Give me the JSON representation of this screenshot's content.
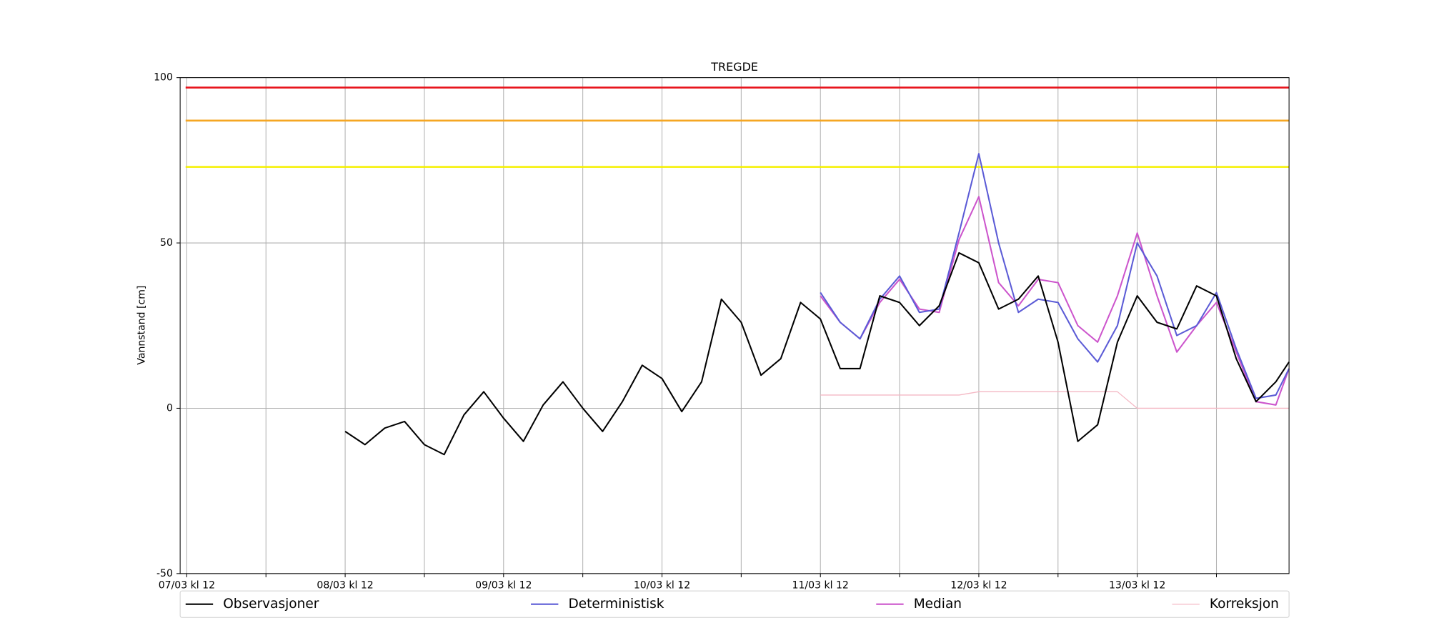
{
  "chart_data": {
    "type": "line",
    "title": "TREGDE",
    "y_label": "Vannstand [cm]",
    "xlim": [
      "07/03 kl 11",
      "14/03 kl 11"
    ],
    "xticks": [
      {
        "value": "07/03 kl 12",
        "label": "07/03 kl 12"
      },
      {
        "value": "08/03 kl 00",
        "label": null
      },
      {
        "value": "08/03 kl 12",
        "label": "08/03 kl 12"
      },
      {
        "value": "09/03 kl 00",
        "label": null
      },
      {
        "value": "09/03 kl 12",
        "label": "09/03 kl 12"
      },
      {
        "value": "10/03 kl 00",
        "label": null
      },
      {
        "value": "10/03 kl 12",
        "label": "10/03 kl 12"
      },
      {
        "value": "11/03 kl 00",
        "label": null
      },
      {
        "value": "11/03 kl 12",
        "label": "11/03 kl 12"
      },
      {
        "value": "12/03 kl 00",
        "label": null
      },
      {
        "value": "12/03 kl 12",
        "label": "12/03 kl 12"
      },
      {
        "value": "13/03 kl 00",
        "label": null
      },
      {
        "value": "13/03 kl 12",
        "label": "13/03 kl 12"
      },
      {
        "value": "14/03 kl 00",
        "label": null
      }
    ],
    "ylim": [
      -50,
      100
    ],
    "yticks": [
      -50,
      0,
      50,
      100
    ],
    "grid": true,
    "legend": "bottom",
    "thresholds": [
      {
        "value": 97,
        "color": "#e8141c"
      },
      {
        "value": 87,
        "color": "#f5a623"
      },
      {
        "value": 73,
        "color": "#f5f000"
      }
    ],
    "series": [
      {
        "name": "Observasjoner",
        "color": "#000000",
        "x": [
          "08/03 kl 12",
          "08/03 kl 15",
          "08/03 kl 18",
          "08/03 kl 21",
          "09/03 kl 00",
          "09/03 kl 03",
          "09/03 kl 06",
          "09/03 kl 09",
          "09/03 kl 12",
          "09/03 kl 15",
          "09/03 kl 18",
          "09/03 kl 21",
          "10/03 kl 00",
          "10/03 kl 03",
          "10/03 kl 06",
          "10/03 kl 09",
          "10/03 kl 12",
          "10/03 kl 15",
          "10/03 kl 18",
          "10/03 kl 21",
          "11/03 kl 00",
          "11/03 kl 03",
          "11/03 kl 06",
          "11/03 kl 09",
          "11/03 kl 12",
          "11/03 kl 15",
          "11/03 kl 18",
          "11/03 kl 21",
          "12/03 kl 00",
          "12/03 kl 03",
          "12/03 kl 06",
          "12/03 kl 09",
          "12/03 kl 12",
          "12/03 kl 15",
          "12/03 kl 18",
          "12/03 kl 21",
          "13/03 kl 00",
          "13/03 kl 03",
          "13/03 kl 06",
          "13/03 kl 09",
          "13/03 kl 12",
          "13/03 kl 15",
          "13/03 kl 18",
          "13/03 kl 21",
          "14/03 kl 00",
          "14/03 kl 03",
          "14/03 kl 06",
          "14/03 kl 09",
          "14/03 kl 11"
        ],
        "values": [
          -7,
          -11,
          -6,
          -4,
          -11,
          -14,
          -2,
          5,
          -3,
          -10,
          1,
          8,
          0,
          -7,
          2,
          13,
          9,
          -1,
          8,
          33,
          26,
          10,
          15,
          32,
          27,
          12,
          12,
          34,
          32,
          25,
          31,
          47,
          44,
          30,
          33,
          40,
          20,
          -10,
          -5,
          20,
          34,
          26,
          24,
          37,
          34,
          15,
          2,
          8,
          14
        ]
      },
      {
        "name": "Deterministisk",
        "color": "#5b5bd6",
        "x": [
          "11/03 kl 12",
          "11/03 kl 15",
          "11/03 kl 18",
          "11/03 kl 21",
          "12/03 kl 00",
          "12/03 kl 03",
          "12/03 kl 06",
          "12/03 kl 09",
          "12/03 kl 12",
          "12/03 kl 15",
          "12/03 kl 18",
          "12/03 kl 21",
          "13/03 kl 00",
          "13/03 kl 03",
          "13/03 kl 06",
          "13/03 kl 09",
          "13/03 kl 12",
          "13/03 kl 15",
          "13/03 kl 18",
          "13/03 kl 21",
          "14/03 kl 00",
          "14/03 kl 03",
          "14/03 kl 06",
          "14/03 kl 09",
          "14/03 kl 11"
        ],
        "values": [
          35,
          26,
          21,
          33,
          40,
          29,
          30,
          53,
          77,
          50,
          29,
          33,
          32,
          21,
          14,
          25,
          50,
          40,
          22,
          25,
          35,
          18,
          3,
          4,
          12
        ]
      },
      {
        "name": "Median",
        "color": "#cc55cc",
        "x": [
          "11/03 kl 12",
          "11/03 kl 15",
          "11/03 kl 18",
          "11/03 kl 21",
          "12/03 kl 00",
          "12/03 kl 03",
          "12/03 kl 06",
          "12/03 kl 09",
          "12/03 kl 12",
          "12/03 kl 15",
          "12/03 kl 18",
          "12/03 kl 21",
          "13/03 kl 00",
          "13/03 kl 03",
          "13/03 kl 06",
          "13/03 kl 09",
          "13/03 kl 12",
          "13/03 kl 15",
          "13/03 kl 18",
          "13/03 kl 21",
          "14/03 kl 00",
          "14/03 kl 03",
          "14/03 kl 06",
          "14/03 kl 09",
          "14/03 kl 11"
        ],
        "values": [
          34,
          26,
          21,
          32,
          39,
          30,
          29,
          51,
          64,
          38,
          31,
          39,
          38,
          25,
          20,
          34,
          53,
          34,
          17,
          25,
          32,
          17,
          2,
          1,
          12
        ]
      },
      {
        "name": "Korreksjon",
        "color": "#f4b8c4",
        "x": [
          "11/03 kl 12",
          "11/03 kl 15",
          "11/03 kl 18",
          "11/03 kl 21",
          "12/03 kl 00",
          "12/03 kl 03",
          "12/03 kl 06",
          "12/03 kl 09",
          "12/03 kl 12",
          "12/03 kl 15",
          "12/03 kl 18",
          "12/03 kl 21",
          "13/03 kl 00",
          "13/03 kl 03",
          "13/03 kl 06",
          "13/03 kl 09",
          "13/03 kl 12",
          "13/03 kl 15",
          "13/03 kl 18",
          "13/03 kl 21",
          "14/03 kl 00",
          "14/03 kl 03",
          "14/03 kl 06",
          "14/03 kl 09",
          "14/03 kl 11"
        ],
        "values": [
          4,
          4,
          4,
          4,
          4,
          4,
          4,
          4,
          5,
          5,
          5,
          5,
          5,
          5,
          5,
          5,
          0,
          0,
          0,
          0,
          0,
          0,
          0,
          0,
          0
        ]
      }
    ]
  }
}
